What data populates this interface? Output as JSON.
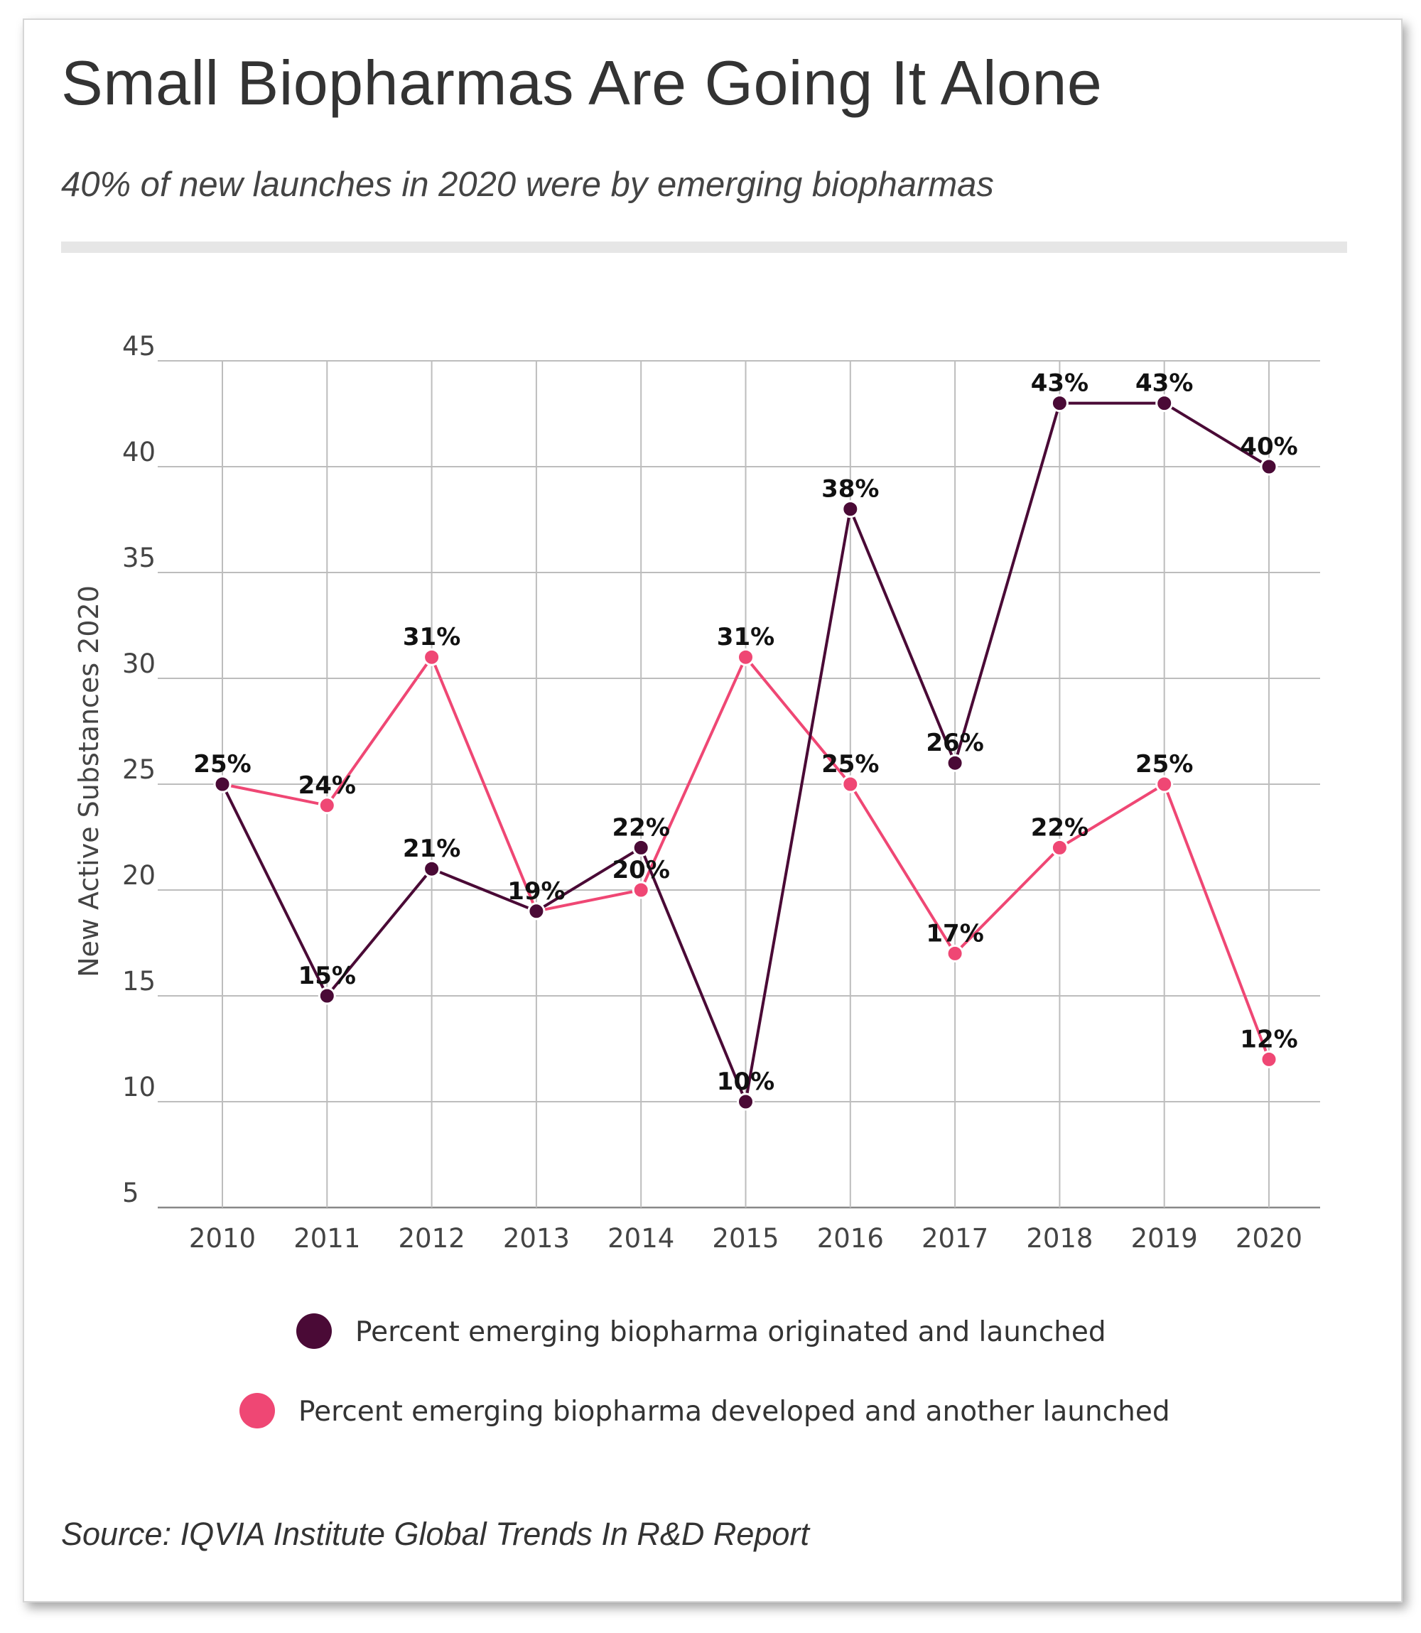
{
  "header": {
    "title": "Small Biopharmas Are Going It Alone",
    "subtitle": "40% of new launches in 2020 were by emerging biopharmas"
  },
  "footer": {
    "source": "Source: IQVIA Institute Global Trends In R&D Report"
  },
  "chart_data": {
    "type": "line",
    "title": "Small Biopharmas Are Going It Alone",
    "xlabel": "",
    "ylabel": "New Active Substances 2020",
    "ylim": [
      5,
      45
    ],
    "yticks": [
      5,
      10,
      15,
      20,
      25,
      30,
      35,
      40,
      45
    ],
    "grid": true,
    "legend_position": "bottom",
    "categories": [
      "2010",
      "2011",
      "2012",
      "2013",
      "2014",
      "2015",
      "2016",
      "2017",
      "2018",
      "2019",
      "2020"
    ],
    "series": [
      {
        "name": "Percent emerging biopharma originated and launched",
        "color": "#4a0a36",
        "values": [
          25,
          15,
          21,
          19,
          22,
          10,
          38,
          26,
          43,
          43,
          40
        ],
        "labels": [
          "",
          "15%",
          "21%",
          "19%",
          "22%",
          "10%",
          "38%",
          "26%",
          "43%",
          "43%",
          "40%"
        ]
      },
      {
        "name": "Percent emerging biopharma developed and another launched",
        "color": "#ef4774",
        "values": [
          25,
          24,
          31,
          19,
          20,
          31,
          25,
          17,
          22,
          25,
          12
        ],
        "labels": [
          "25%",
          "24%",
          "31%",
          "",
          "20%",
          "31%",
          "25%",
          "17%",
          "22%",
          "25%",
          "12%"
        ]
      }
    ]
  }
}
